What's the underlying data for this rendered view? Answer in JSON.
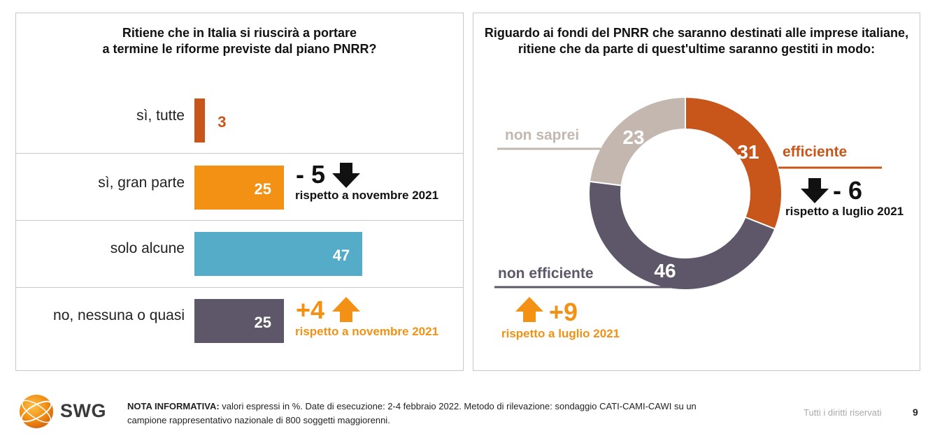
{
  "left_chart": {
    "title_line1": "Ritiene che in Italia si riuscirà a portare",
    "title_line2": "a termine le riforme previste dal piano PNRR?",
    "rows": [
      {
        "label": "sì, tutte",
        "value": 3,
        "value_text": "3",
        "color": "#C8561A"
      },
      {
        "label": "sì, gran parte",
        "value": 25,
        "value_text": "25",
        "color": "#F29114"
      },
      {
        "label": "solo alcune",
        "value": 47,
        "value_text": "47",
        "color": "#55ACC9"
      },
      {
        "label": "no, nessuna o quasi",
        "value": 25,
        "value_text": "25",
        "color": "#5E5769"
      }
    ],
    "change_gran_parte": {
      "value": "- 5",
      "note": "rispetto a novembre 2021",
      "direction": "down"
    },
    "change_nessuna": {
      "value": "+4",
      "note": "rispetto a novembre 2021",
      "direction": "up"
    }
  },
  "right_chart": {
    "title_line1": "Riguardo ai fondi del PNRR che saranno destinati alle imprese italiane,",
    "title_line2": "ritiene che da parte di quest'ultime saranno gestiti in modo:",
    "slices": [
      {
        "label": "efficiente",
        "value": 31,
        "value_text": "31",
        "color": "#C8561A"
      },
      {
        "label": "non efficiente",
        "value": 46,
        "value_text": "46",
        "color": "#5E5769"
      },
      {
        "label": "non saprei",
        "value": 23,
        "value_text": "23",
        "color": "#C3B7AF"
      }
    ],
    "change_efficiente": {
      "value": "- 6",
      "note": "rispetto a luglio 2021",
      "direction": "down"
    },
    "change_non_efficiente": {
      "value": "+9",
      "note": "rispetto a luglio 2021",
      "direction": "up"
    }
  },
  "chart_data": [
    {
      "type": "bar",
      "title": "Ritiene che in Italia si riuscirà a portare a termine le riforme previste dal piano PNRR?",
      "categories": [
        "sì, tutte",
        "sì, gran parte",
        "solo alcune",
        "no, nessuna o quasi"
      ],
      "values": [
        3,
        25,
        47,
        25
      ],
      "orientation": "horizontal",
      "annotations": [
        {
          "category": "sì, gran parte",
          "text": "- 5 rispetto a novembre 2021"
        },
        {
          "category": "no, nessuna o quasi",
          "text": "+4 rispetto a novembre 2021"
        }
      ]
    },
    {
      "type": "pie",
      "title": "Riguardo ai fondi del PNRR che saranno destinati alle imprese italiane, ritiene che da parte di quest'ultime saranno gestiti in modo:",
      "categories": [
        "efficiente",
        "non efficiente",
        "non saprei"
      ],
      "values": [
        31,
        46,
        23
      ],
      "donut": true,
      "annotations": [
        {
          "category": "efficiente",
          "text": "- 6 rispetto a luglio 2021"
        },
        {
          "category": "non efficiente",
          "text": "+9 rispetto a luglio 2021"
        }
      ]
    }
  ],
  "footer": {
    "logo": "SWG",
    "note_label": "NOTA INFORMATIVA:",
    "note_line1": " valori espressi in %. Date di esecuzione: 2-4 febbraio 2022. Metodo di rilevazione: sondaggio CATI-CAMI-CAWI su un",
    "note_line2": "campione rappresentativo nazionale di 800 soggetti maggiorenni.",
    "rights": "Tutti i diritti riservati",
    "page": "9"
  },
  "colors": {
    "orange": "#F29114",
    "dark_orange": "#C8561A",
    "blue": "#55ACC9",
    "purple": "#5E5769",
    "beige": "#C3B7AF"
  }
}
